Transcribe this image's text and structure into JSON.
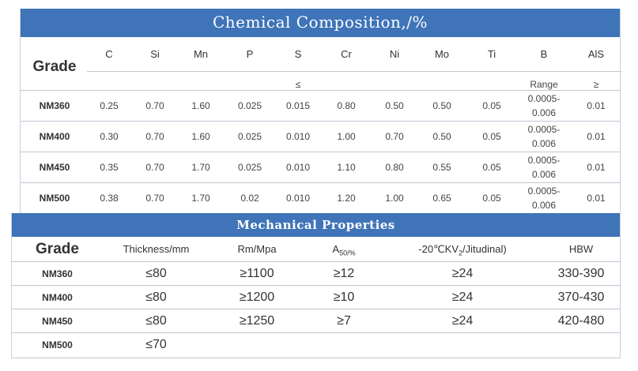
{
  "chemical": {
    "title": "Chemical Composition,/%",
    "grade_label": "Grade",
    "elements": [
      "C",
      "Si",
      "Mn",
      "P",
      "S",
      "Cr",
      "Ni",
      "Mo",
      "Ti",
      "B",
      "AlS"
    ],
    "sub_s": "≤",
    "sub_b": "Range",
    "sub_als": "≥",
    "rows": [
      {
        "grade": "NM360",
        "values": [
          "0.25",
          "0.70",
          "1.60",
          "0.025",
          "0.015",
          "0.80",
          "0.50",
          "0.50",
          "0.05"
        ],
        "b_line1": "0.0005-",
        "b_line2": "0.006",
        "als": "0.01"
      },
      {
        "grade": "NM400",
        "values": [
          "0.30",
          "0.70",
          "1.60",
          "0.025",
          "0.010",
          "1.00",
          "0.70",
          "0.50",
          "0.05"
        ],
        "b_line1": "0.0005-",
        "b_line2": "0.006",
        "als": "0.01"
      },
      {
        "grade": "NM450",
        "values": [
          "0.35",
          "0.70",
          "1.70",
          "0.025",
          "0.010",
          "1.10",
          "0.80",
          "0.55",
          "0.05"
        ],
        "b_line1": "0.0005-",
        "b_line2": "0.006",
        "als": "0.01"
      },
      {
        "grade": "NM500",
        "values": [
          "0.38",
          "0.70",
          "1.70",
          "0.02",
          "0.010",
          "1.20",
          "1.00",
          "0.65",
          "0.05"
        ],
        "b_line1": "0.0005-",
        "b_line2": "0.006",
        "als": "0.01"
      }
    ]
  },
  "mechanical": {
    "title": "Mechanical Properties",
    "grade_label": "Grade",
    "headers": {
      "thickness": "Thickness/mm",
      "rm": "Rm/Mpa",
      "a_main": "A",
      "a_sub": "50/%",
      "kv_pre": "-20℃KV",
      "kv_sub": "2",
      "kv_post": "/Jitudinal)",
      "hbw": "HBW"
    },
    "rows": [
      {
        "grade": "NM360",
        "thickness": "≤80",
        "rm": "≥1100",
        "a": "≥12",
        "kv": "≥24",
        "hbw": "330-390"
      },
      {
        "grade": "NM400",
        "thickness": "≤80",
        "rm": "≥1200",
        "a": "≥10",
        "kv": "≥24",
        "hbw": "370-430"
      },
      {
        "grade": "NM450",
        "thickness": "≤80",
        "rm": "≥1250",
        "a": "≥7",
        "kv": "≥24",
        "hbw": "420-480"
      },
      {
        "grade": "NM500",
        "thickness": "≤70",
        "rm": "",
        "a": "",
        "kv": "",
        "hbw": ""
      }
    ]
  }
}
